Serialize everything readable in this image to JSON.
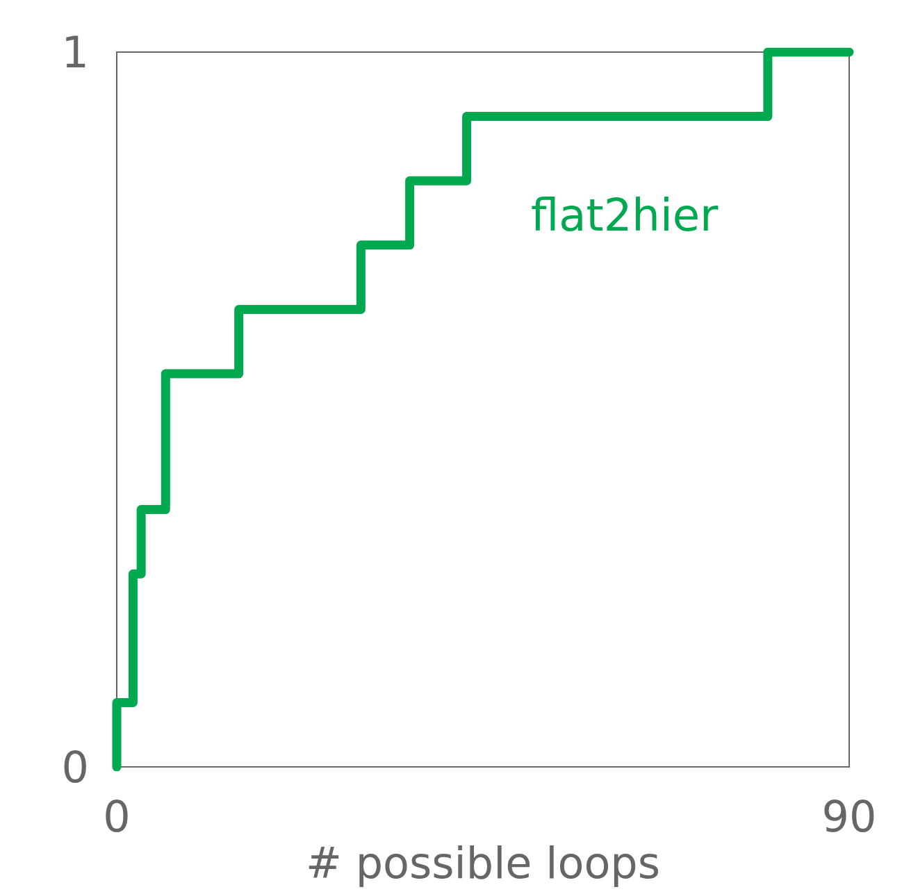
{
  "chart_data": {
    "type": "step",
    "xlabel": "# possible loops",
    "x": [
      0,
      0,
      2,
      3,
      6,
      15,
      30,
      36,
      43,
      80,
      90
    ],
    "series": [
      {
        "name": "flat2hier",
        "color": "#00a84f",
        "values": [
          0,
          0.09,
          0.27,
          0.36,
          0.55,
          0.64,
          0.73,
          0.82,
          0.91,
          1,
          1
        ]
      }
    ],
    "xlim": [
      0,
      90
    ],
    "xticks": [
      0,
      90
    ],
    "ylim": [
      0,
      1
    ],
    "yticks": [
      0,
      1
    ],
    "grid": false,
    "legend": false,
    "line_style": "solid"
  }
}
